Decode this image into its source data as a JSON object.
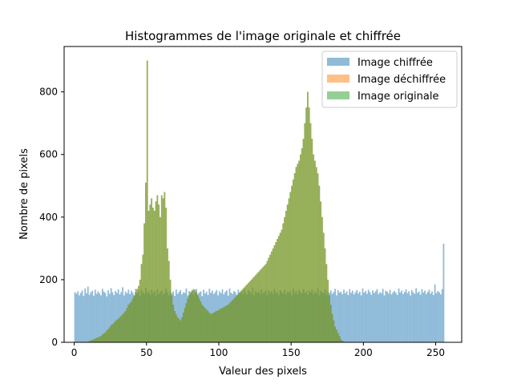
{
  "chart_data": {
    "type": "histogram",
    "title": "Histogrammes de l'image originale et chiffrée",
    "xlabel": "Valeur des pixels",
    "ylabel": "Nombre de pixels",
    "xlim": [
      -7,
      268
    ],
    "ylim": [
      0,
      945
    ],
    "x_ticks": [
      "0",
      "50",
      "100",
      "150",
      "200",
      "250"
    ],
    "y_ticks": [
      "0",
      "200",
      "400",
      "600",
      "800"
    ],
    "bin_width": 1,
    "legend_position": "top-right",
    "series": [
      {
        "name": "Image chiffrée",
        "color": "#1f77b4",
        "alpha": 0.5,
        "start_x": 0,
        "values": [
          160,
          155,
          163,
          150,
          158,
          166,
          148,
          172,
          157,
          178,
          152,
          160,
          165,
          149,
          168,
          155,
          163,
          157,
          150,
          171,
          162,
          158,
          147,
          166,
          155,
          173,
          160,
          151,
          164,
          158,
          169,
          153,
          161,
          176,
          150,
          162,
          157,
          168,
          154,
          165,
          159,
          150,
          171,
          156,
          163,
          148,
          167,
          160,
          154,
          175,
          158,
          162,
          151,
          168,
          157,
          164,
          149,
          170,
          155,
          161,
          166,
          152,
          158,
          173,
          160,
          150,
          165,
          157,
          163,
          148,
          169,
          155,
          161,
          167,
          153,
          160,
          158,
          172,
          150,
          164,
          157,
          166,
          152,
          161,
          170,
          155,
          159,
          163,
          148,
          168,
          156,
          162,
          151,
          171,
          158,
          165,
          154,
          160,
          167,
          150,
          163,
          157,
          169,
          153,
          161,
          166,
          149,
          172,
          158,
          155,
          164,
          160,
          151,
          168,
          157,
          163,
          154,
          170,
          159,
          152,
          166,
          161,
          155,
          173,
          150,
          164,
          158,
          162,
          153,
          169,
          156,
          160,
          165,
          151,
          167,
          158,
          163,
          154,
          171,
          157,
          160,
          150,
          166,
          162,
          155,
          168,
          153,
          161,
          159,
          164,
          150,
          172,
          157,
          163,
          152,
          167,
          160,
          155,
          170,
          158,
          162,
          151,
          165,
          159,
          168,
          154,
          161,
          157,
          173,
          150,
          164,
          160,
          156,
          169,
          152,
          163,
          158,
          166,
          155,
          161,
          171,
          150,
          167,
          159,
          162,
          154,
          168,
          157,
          163,
          151,
          170,
          158,
          165,
          153,
          160,
          167,
          156,
          162,
          150,
          172,
          159,
          164,
          155,
          168,
          161,
          152,
          166,
          158,
          163,
          170,
          154,
          160,
          157,
          171,
          150,
          165,
          162,
          156,
          168,
          153,
          160,
          164,
          158,
          151,
          172,
          159,
          166,
          154,
          161,
          169,
          157,
          163,
          150,
          167,
          160,
          155,
          173,
          158,
          162,
          152,
          170,
          159,
          165,
          154,
          161,
          168,
          156,
          163,
          151,
          185,
          157,
          164,
          160,
          153,
          170,
          315
        ]
      },
      {
        "name": "Image déchiffrée",
        "color": "#ff7f0e",
        "alpha": 0.5,
        "start_x": 0,
        "values": [
          0,
          0,
          0,
          0,
          0,
          0,
          0,
          0,
          0,
          2,
          4,
          6,
          8,
          10,
          12,
          14,
          16,
          18,
          20,
          25,
          28,
          32,
          38,
          42,
          48,
          55,
          58,
          62,
          68,
          72,
          75,
          80,
          85,
          90,
          95,
          100,
          110,
          120,
          125,
          130,
          140,
          150,
          160,
          170,
          180,
          200,
          250,
          280,
          380,
          510,
          900,
          420,
          440,
          460,
          430,
          420,
          450,
          470,
          440,
          400,
          470,
          460,
          480,
          430,
          300,
          260,
          200,
          150,
          120,
          100,
          90,
          80,
          75,
          70,
          80,
          95,
          110,
          125,
          140,
          150,
          160,
          165,
          170,
          168,
          160,
          150,
          140,
          130,
          120,
          115,
          110,
          105,
          100,
          95,
          90,
          92,
          95,
          98,
          100,
          102,
          105,
          108,
          110,
          112,
          115,
          118,
          120,
          125,
          130,
          135,
          140,
          145,
          150,
          155,
          160,
          165,
          170,
          175,
          180,
          185,
          190,
          195,
          200,
          205,
          210,
          215,
          220,
          225,
          230,
          235,
          240,
          245,
          250,
          260,
          270,
          280,
          290,
          300,
          310,
          320,
          330,
          340,
          350,
          360,
          380,
          400,
          420,
          440,
          460,
          480,
          500,
          520,
          540,
          560,
          570,
          580,
          600,
          620,
          650,
          700,
          750,
          800,
          750,
          700,
          650,
          600,
          580,
          560,
          540,
          500,
          450,
          400,
          350,
          300,
          250,
          200,
          150,
          120,
          90,
          70,
          50,
          40,
          30,
          20,
          10,
          5,
          2,
          0,
          0,
          0,
          0,
          0,
          0,
          0,
          0,
          0
        ]
      },
      {
        "name": "Image originale",
        "color": "#2ca02c",
        "alpha": 0.5,
        "start_x": 0,
        "values": [
          0,
          0,
          0,
          0,
          0,
          0,
          0,
          0,
          0,
          2,
          4,
          6,
          8,
          10,
          12,
          14,
          16,
          18,
          20,
          25,
          28,
          32,
          38,
          42,
          48,
          55,
          58,
          62,
          68,
          72,
          75,
          80,
          85,
          90,
          95,
          100,
          110,
          120,
          125,
          130,
          140,
          150,
          160,
          170,
          180,
          200,
          250,
          280,
          380,
          510,
          900,
          420,
          440,
          460,
          430,
          420,
          450,
          470,
          440,
          400,
          470,
          460,
          480,
          430,
          300,
          260,
          200,
          150,
          120,
          100,
          90,
          80,
          75,
          70,
          80,
          95,
          110,
          125,
          140,
          150,
          160,
          165,
          170,
          168,
          160,
          150,
          140,
          130,
          120,
          115,
          110,
          105,
          100,
          95,
          90,
          92,
          95,
          98,
          100,
          102,
          105,
          108,
          110,
          112,
          115,
          118,
          120,
          125,
          130,
          135,
          140,
          145,
          150,
          155,
          160,
          165,
          170,
          175,
          180,
          185,
          190,
          195,
          200,
          205,
          210,
          215,
          220,
          225,
          230,
          235,
          240,
          245,
          250,
          260,
          270,
          280,
          290,
          300,
          310,
          320,
          330,
          340,
          350,
          360,
          380,
          400,
          420,
          440,
          460,
          480,
          500,
          520,
          540,
          560,
          570,
          580,
          600,
          620,
          650,
          700,
          750,
          800,
          750,
          700,
          650,
          600,
          580,
          560,
          540,
          500,
          450,
          400,
          350,
          300,
          250,
          200,
          150,
          120,
          90,
          70,
          50,
          40,
          30,
          20,
          10,
          5,
          2,
          0,
          0,
          0,
          0,
          0,
          0,
          0,
          0,
          0
        ]
      }
    ]
  }
}
